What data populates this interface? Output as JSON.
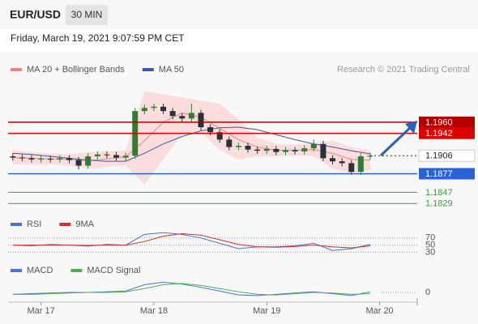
{
  "header": {
    "symbol": "EUR/USD",
    "interval": "30 MIN",
    "timestamp": "Friday, March 19, 2021 9:07:59 PM CET"
  },
  "chart_data": [
    {
      "type": "candlestick",
      "source": "Research © 2021 Trading Central",
      "xlim": [
        -7,
        80
      ],
      "ylim": [
        1.1811,
        1.2033
      ],
      "up_color": "#2e7d32",
      "down_color": "#263238",
      "candles": {
        "x": [
          -6,
          -4,
          -2,
          0,
          2,
          4,
          6,
          8,
          10,
          12,
          14,
          16,
          18,
          20,
          22,
          24,
          26,
          28,
          30,
          32,
          34,
          36,
          38,
          40,
          42,
          44,
          46,
          48,
          50,
          52,
          54,
          56,
          58,
          60,
          62,
          64,
          66,
          68,
          70
        ],
        "open": [
          1.1905,
          1.1903,
          1.1902,
          1.19,
          1.1901,
          1.19,
          1.1902,
          1.1899,
          1.189,
          1.1905,
          1.1908,
          1.1907,
          1.1903,
          1.1906,
          1.1978,
          1.1983,
          1.1985,
          1.1978,
          1.197,
          1.1966,
          1.1975,
          1.1952,
          1.1944,
          1.1932,
          1.192,
          1.1922,
          1.1916,
          1.1914,
          1.1917,
          1.1912,
          1.1915,
          1.1913,
          1.1918,
          1.1925,
          1.1902,
          1.1897,
          1.1894,
          1.188,
          1.1905
        ],
        "high": [
          1.191,
          1.1908,
          1.1907,
          1.1906,
          1.1906,
          1.1907,
          1.1907,
          1.1904,
          1.191,
          1.1913,
          1.1913,
          1.1912,
          1.1911,
          1.1983,
          1.1988,
          1.199,
          1.199,
          1.1983,
          1.1975,
          1.199,
          1.198,
          1.1957,
          1.1949,
          1.1937,
          1.1927,
          1.1927,
          1.1921,
          1.1922,
          1.1922,
          1.192,
          1.192,
          1.1923,
          1.1932,
          1.193,
          1.1907,
          1.1902,
          1.1899,
          1.191,
          1.1911
        ],
        "low": [
          1.1898,
          1.1897,
          1.1895,
          1.1895,
          1.1895,
          1.1895,
          1.1894,
          1.1884,
          1.1885,
          1.19,
          1.1902,
          1.1898,
          1.1898,
          1.1901,
          1.1973,
          1.1978,
          1.1973,
          1.1965,
          1.1961,
          1.1961,
          1.1947,
          1.1939,
          1.1927,
          1.1915,
          1.1915,
          1.1911,
          1.1909,
          1.1909,
          1.1907,
          1.1907,
          1.1908,
          1.1908,
          1.1913,
          1.1897,
          1.1892,
          1.1889,
          1.1875,
          1.1875,
          1.19
        ],
        "close": [
          1.1903,
          1.1902,
          1.19,
          1.1901,
          1.19,
          1.1902,
          1.1899,
          1.189,
          1.1905,
          1.1908,
          1.1907,
          1.1903,
          1.1906,
          1.1978,
          1.1983,
          1.1985,
          1.1978,
          1.197,
          1.1966,
          1.1975,
          1.1952,
          1.1944,
          1.1932,
          1.192,
          1.1922,
          1.1916,
          1.1914,
          1.1917,
          1.1912,
          1.1915,
          1.1913,
          1.1918,
          1.1925,
          1.1902,
          1.1897,
          1.1894,
          1.188,
          1.1905,
          1.1906
        ]
      },
      "x": [
        -6,
        -2,
        2,
        6,
        10,
        14,
        18,
        22,
        26,
        30,
        34,
        38,
        42,
        46,
        50,
        54,
        58,
        62,
        66,
        70
      ],
      "series": [
        {
          "name": "MA 20 + Bollinger Bands",
          "color": "#f08080",
          "band_color": "#fcd4d4",
          "values": [
            1.1903,
            1.1902,
            1.1901,
            1.19,
            1.1898,
            1.1901,
            1.1904,
            1.193,
            1.196,
            1.1975,
            1.1968,
            1.195,
            1.1932,
            1.192,
            1.1915,
            1.1915,
            1.1916,
            1.191,
            1.19,
            1.1899
          ],
          "upper": [
            1.1915,
            1.1912,
            1.191,
            1.1908,
            1.1912,
            1.1913,
            1.1915,
            1.201,
            1.2005,
            1.2,
            1.1995,
            1.199,
            1.1965,
            1.1935,
            1.1925,
            1.1924,
            1.1928,
            1.193,
            1.192,
            1.1915
          ],
          "lower": [
            1.1892,
            1.1891,
            1.1892,
            1.189,
            1.1885,
            1.1888,
            1.189,
            1.186,
            1.19,
            1.194,
            1.1945,
            1.1915,
            1.19,
            1.1905,
            1.1905,
            1.1906,
            1.1905,
            1.1885,
            1.1878,
            1.1883
          ]
        },
        {
          "name": "MA 50",
          "color": "#3b5ba5",
          "values": [
            1.191,
            1.1908,
            1.1905,
            1.1902,
            1.1899,
            1.1897,
            1.1897,
            1.191,
            1.1925,
            1.1937,
            1.1946,
            1.1951,
            1.1952,
            1.1948,
            1.194,
            1.1932,
            1.1925,
            1.192,
            1.1914,
            1.1909
          ]
        }
      ],
      "levels": [
        {
          "value": 1.196,
          "label": "1.1960",
          "color": "#b00000",
          "boxed": true
        },
        {
          "value": 1.1942,
          "label": "1.1942",
          "color": "#e00000",
          "boxed": true
        },
        {
          "value": 1.1906,
          "label": "1.1906",
          "color": "#222222",
          "boxed": true,
          "dotted": true
        },
        {
          "value": 1.1877,
          "label": "1.1877",
          "color": "#2a62d8",
          "boxed": true
        },
        {
          "value": 1.1847,
          "label": "1.1847",
          "color": "#3a9a3a",
          "boxed": false
        },
        {
          "value": 1.1829,
          "label": "1.1829",
          "color": "#3a9a3a",
          "boxed": false
        }
      ]
    },
    {
      "type": "line",
      "xlim": [
        -7,
        80
      ],
      "ylim": [
        15,
        90
      ],
      "yticks": [
        70,
        50,
        30
      ],
      "x": [
        -6,
        -2,
        2,
        6,
        10,
        14,
        18,
        22,
        26,
        30,
        34,
        38,
        42,
        46,
        50,
        54,
        58,
        62,
        66,
        70
      ],
      "series": [
        {
          "name": "RSI",
          "color": "#4a72d8",
          "values": [
            50,
            48,
            52,
            50,
            47,
            52,
            50,
            80,
            85,
            80,
            70,
            55,
            40,
            45,
            45,
            48,
            55,
            35,
            40,
            52
          ]
        },
        {
          "name": "9MA",
          "color": "#d32f2f",
          "values": [
            50,
            50,
            50,
            50,
            49,
            50,
            50,
            60,
            75,
            82,
            78,
            65,
            52,
            45,
            44,
            46,
            50,
            45,
            42,
            48
          ]
        }
      ]
    },
    {
      "type": "line",
      "xlim": [
        -7,
        80
      ],
      "ylim": [
        -0.0014,
        0.0033
      ],
      "yticks": [
        0
      ],
      "x": [
        -6,
        -2,
        2,
        6,
        10,
        14,
        18,
        22,
        26,
        30,
        34,
        38,
        42,
        46,
        50,
        54,
        58,
        62,
        66,
        70
      ],
      "series": [
        {
          "name": "MACD",
          "color": "#4a72d8",
          "values": [
            -0.0003,
            -0.0002,
            -0.0001,
            0,
            0,
            0.0001,
            0.0002,
            0.0012,
            0.0016,
            0.0013,
            0.0008,
            0.0002,
            -0.0004,
            -0.0005,
            -0.0003,
            -0.0001,
            0.0001,
            -0.0002,
            -0.0005,
            0.0001
          ]
        },
        {
          "name": "MACD Signal",
          "color": "#4caf50",
          "values": [
            -0.0003,
            -0.0003,
            -0.0002,
            -0.0001,
            0,
            0,
            0.0001,
            0.0006,
            0.0012,
            0.0014,
            0.0011,
            0.0006,
            0.0001,
            -0.0003,
            -0.0004,
            -0.0002,
            0,
            -0.0001,
            -0.0003,
            -0.0002
          ]
        }
      ],
      "xticks": [
        {
          "value": 0,
          "label": "Mar 17"
        },
        {
          "value": 24,
          "label": "Mar 18"
        },
        {
          "value": 48,
          "label": "Mar 19"
        },
        {
          "value": 72,
          "label": "Mar 20"
        }
      ]
    }
  ]
}
